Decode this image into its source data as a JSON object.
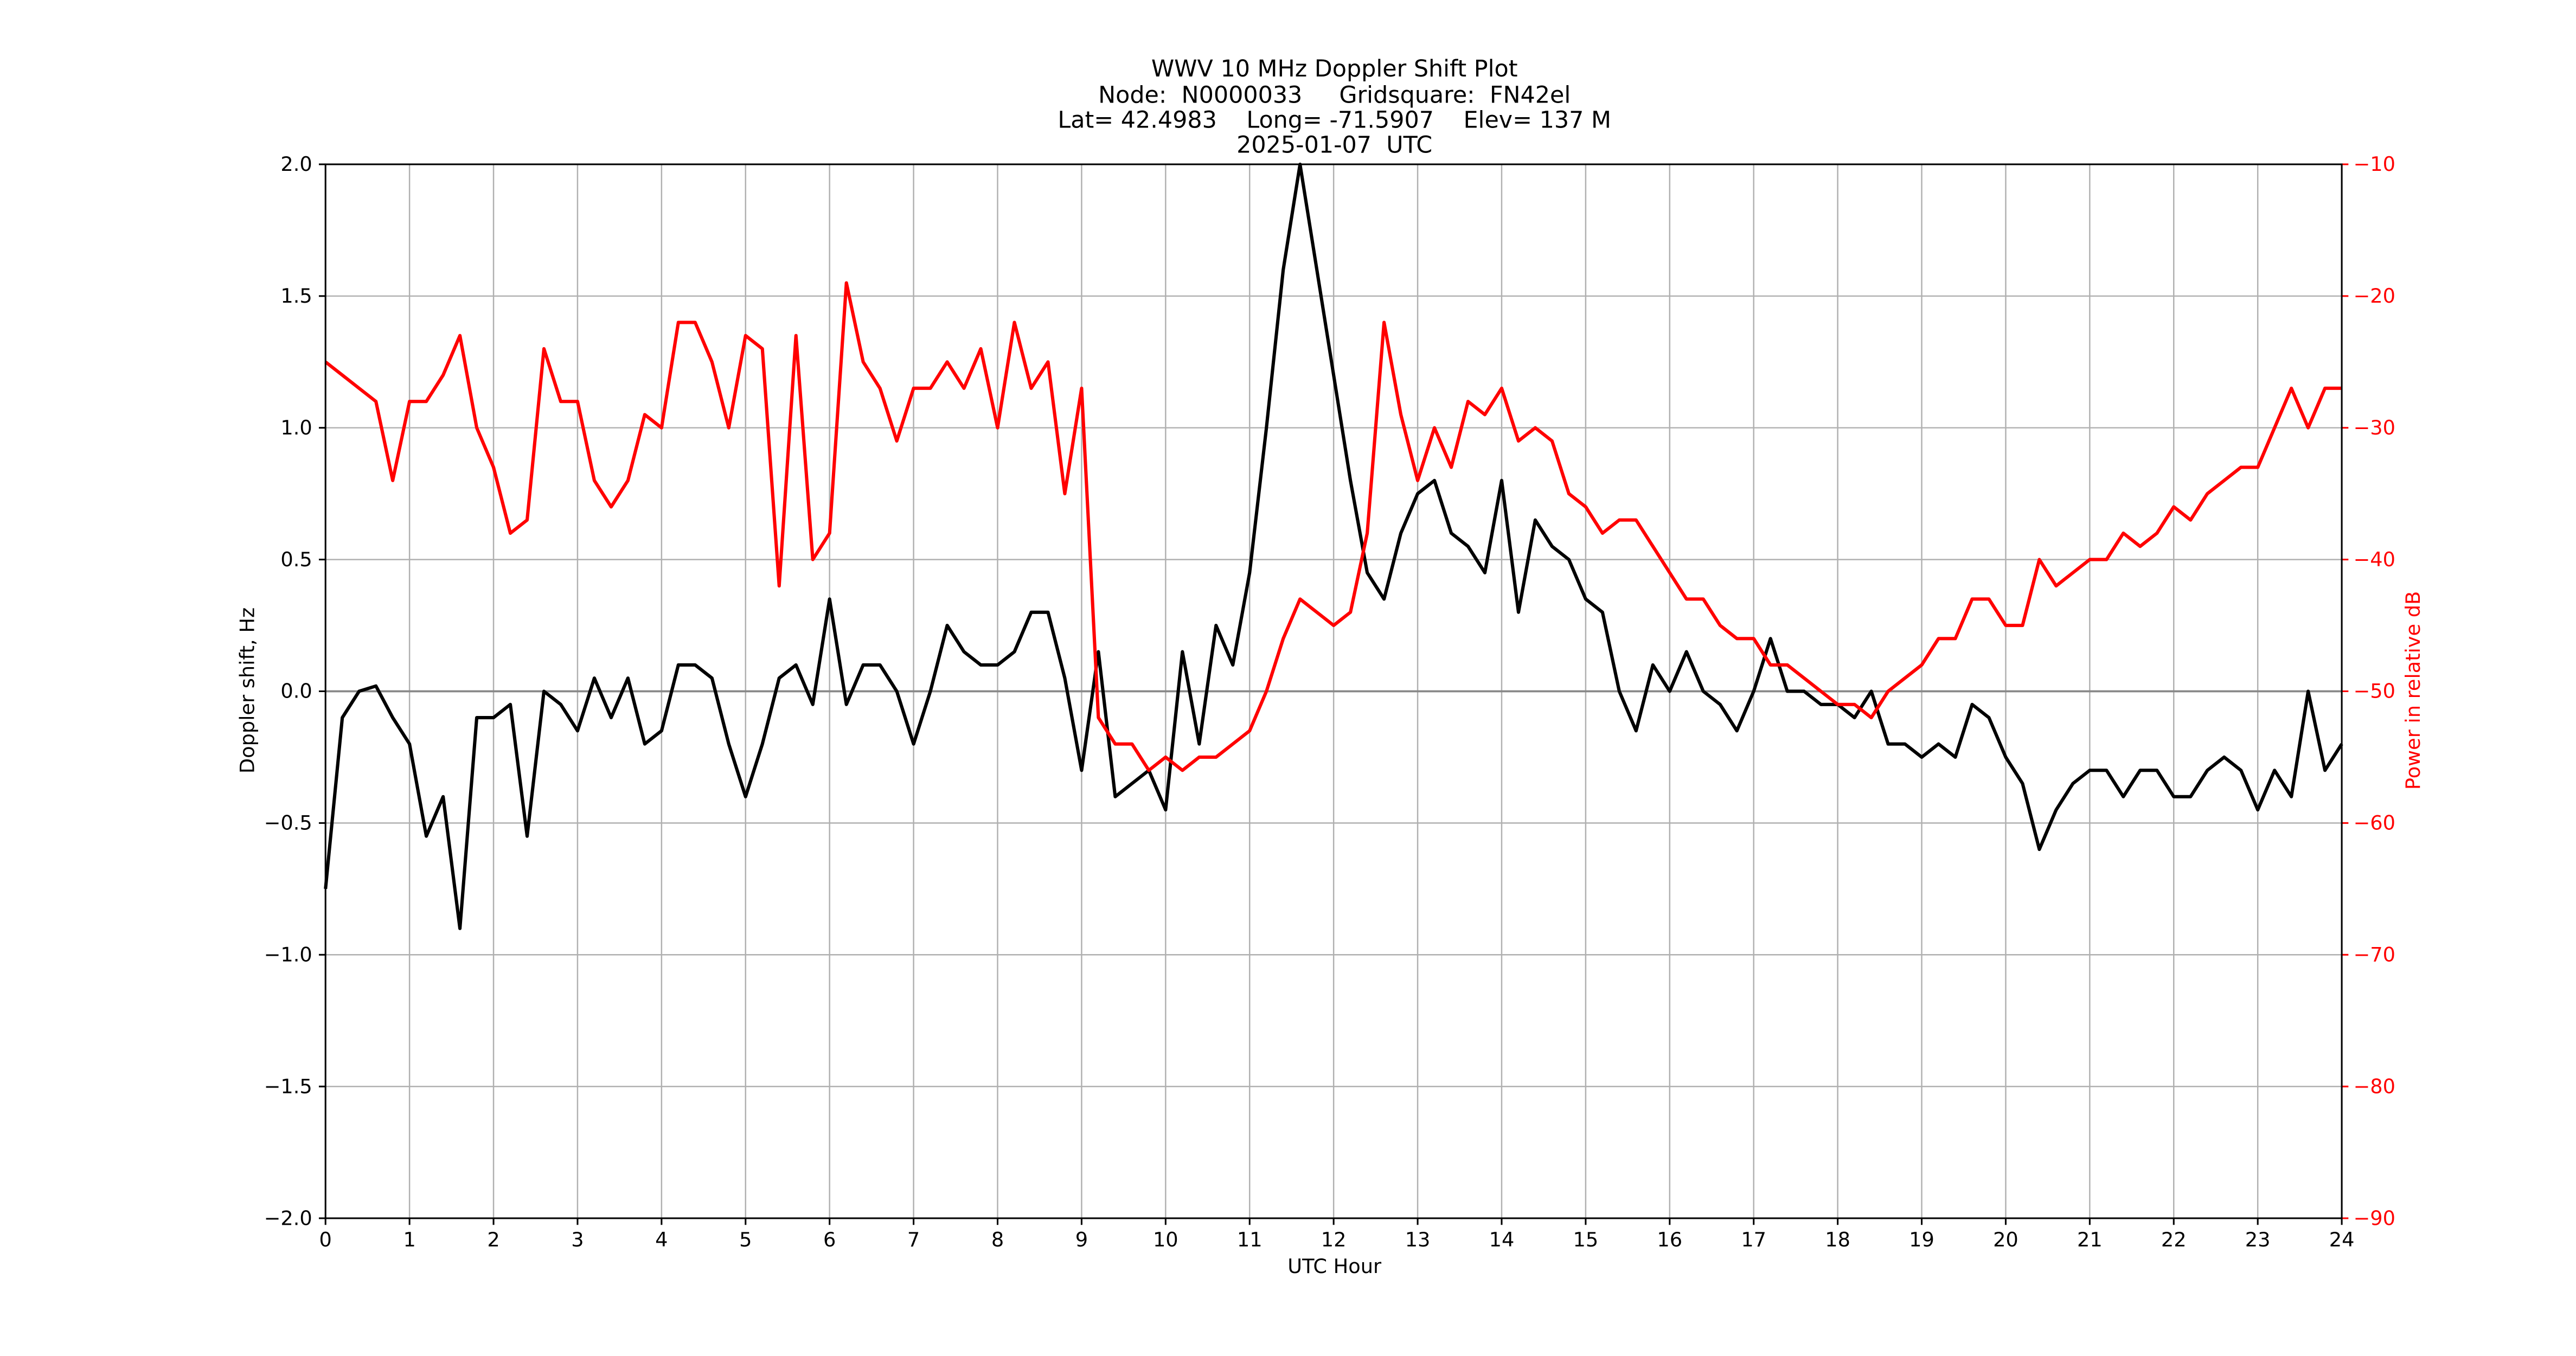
{
  "chart_data": {
    "type": "line",
    "title": [
      "WWV 10 MHz Doppler Shift Plot",
      "Node:  N0000033     Gridsquare:  FN42el",
      "Lat= 42.4983    Long= -71.5907    Elev= 137 M",
      "2025-01-07  UTC"
    ],
    "x_label": "UTC Hour",
    "y_label": "Doppler shift, Hz",
    "y2_label": "Power in relative dB",
    "xlim": [
      0,
      24
    ],
    "ylim": [
      -2,
      2
    ],
    "y2lim": [
      -90,
      -10
    ],
    "grid": true,
    "xticks": [
      0,
      1,
      2,
      3,
      4,
      5,
      6,
      7,
      8,
      9,
      10,
      11,
      12,
      13,
      14,
      15,
      16,
      17,
      18,
      19,
      20,
      21,
      22,
      23,
      24
    ],
    "yticks": [
      {
        "value": -2,
        "label": "−2.0"
      },
      {
        "value": -1.5,
        "label": "−1.5"
      },
      {
        "value": -1,
        "label": "−1.0"
      },
      {
        "value": -0.5,
        "label": "−0.5"
      },
      {
        "value": 0,
        "label": "0.0"
      },
      {
        "value": 0.5,
        "label": "0.5"
      },
      {
        "value": 1,
        "label": "1.0"
      },
      {
        "value": 1.5,
        "label": "1.5"
      },
      {
        "value": 2,
        "label": "2.0"
      }
    ],
    "y2ticks": [
      {
        "value": -90,
        "label": "−90"
      },
      {
        "value": -80,
        "label": "−80"
      },
      {
        "value": -70,
        "label": "−70"
      },
      {
        "value": -60,
        "label": "−60"
      },
      {
        "value": -50,
        "label": "−50"
      },
      {
        "value": -40,
        "label": "−40"
      },
      {
        "value": -30,
        "label": "−30"
      },
      {
        "value": -20,
        "label": "−20"
      },
      {
        "value": -10,
        "label": "−10"
      }
    ],
    "x": [
      0,
      0.2,
      0.4,
      0.6,
      0.8,
      1,
      1.2,
      1.4,
      1.6,
      1.8,
      2,
      2.2,
      2.4,
      2.6,
      2.8,
      3,
      3.2,
      3.4,
      3.6,
      3.8,
      4,
      4.2,
      4.4,
      4.6,
      4.8,
      5,
      5.2,
      5.4,
      5.6,
      5.8,
      6,
      6.2,
      6.4,
      6.6,
      6.8,
      7,
      7.2,
      7.4,
      7.6,
      7.8,
      8,
      8.2,
      8.4,
      8.6,
      8.8,
      9,
      9.2,
      9.4,
      9.6,
      9.8,
      10,
      10.2,
      10.4,
      10.6,
      10.8,
      11,
      11.2,
      11.4,
      11.6,
      11.8,
      12,
      12.2,
      12.4,
      12.6,
      12.8,
      13,
      13.2,
      13.4,
      13.6,
      13.8,
      14,
      14.2,
      14.4,
      14.6,
      14.8,
      15,
      15.2,
      15.4,
      15.6,
      15.8,
      16,
      16.2,
      16.4,
      16.6,
      16.8,
      17,
      17.2,
      17.4,
      17.6,
      17.8,
      18,
      18.2,
      18.4,
      18.6,
      18.8,
      19,
      19.2,
      19.4,
      19.6,
      19.8,
      20,
      20.2,
      20.4,
      20.6,
      20.8,
      21,
      21.2,
      21.4,
      21.6,
      21.8,
      22,
      22.2,
      22.4,
      22.6,
      22.8,
      23,
      23.2,
      23.4,
      23.6,
      23.8,
      24
    ],
    "series": [
      {
        "color": "#000000",
        "values": [
          -0.75,
          -0.1,
          0,
          0.02,
          -0.1,
          -0.2,
          -0.55,
          -0.4,
          -0.9,
          -0.1,
          -0.1,
          -0.05,
          -0.55,
          0,
          -0.05,
          -0.15,
          0.05,
          -0.1,
          0.05,
          -0.2,
          -0.15,
          0.1,
          0.1,
          0.05,
          -0.2,
          -0.4,
          -0.2,
          0.05,
          0.1,
          -0.05,
          0.35,
          -0.05,
          0.1,
          0.1,
          0,
          -0.2,
          0,
          0.25,
          0.15,
          0.1,
          0.1,
          0.15,
          0.3,
          0.3,
          0.05,
          -0.3,
          0.15,
          -0.4,
          -0.35,
          -0.3,
          -0.45,
          0.15,
          -0.2,
          0.25,
          0.1,
          0.45,
          1,
          1.6,
          2,
          1.6,
          1.2,
          0.8,
          0.45,
          0.35,
          0.6,
          0.75,
          0.8,
          0.6,
          0.55,
          0.45,
          0.8,
          0.3,
          0.65,
          0.55,
          0.5,
          0.35,
          0.3,
          0,
          -0.15,
          0.1,
          0,
          0.15,
          0,
          -0.05,
          -0.15,
          0,
          0.2,
          0,
          0,
          -0.05,
          -0.05,
          -0.1,
          0,
          -0.2,
          -0.2,
          -0.25,
          -0.2,
          -0.25,
          -0.05,
          -0.1,
          -0.25,
          -0.35,
          -0.6,
          -0.45,
          -0.35,
          -0.3,
          -0.3,
          -0.4,
          -0.3,
          -0.3,
          -0.4,
          -0.4,
          -0.3,
          -0.25,
          -0.3,
          -0.45,
          -0.3,
          -0.4,
          0,
          -0.3,
          -0.2
        ]
      },
      {
        "color": "#ff0000",
        "axis": "y2",
        "values": [
          -25,
          -26,
          -27,
          -28,
          -34,
          -28,
          -28,
          -26,
          -23,
          -30,
          -33,
          -38,
          -37,
          -24,
          -28,
          -28,
          -34,
          -36,
          -34,
          -29,
          -30,
          -22,
          -22,
          -25,
          -30,
          -23,
          -24,
          -42,
          -23,
          -40,
          -38,
          -19,
          -25,
          -27,
          -31,
          -27,
          -27,
          -25,
          -27,
          -24,
          -30,
          -22,
          -27,
          -25,
          -35,
          -27,
          -52,
          -54,
          -54,
          -56,
          -55,
          -56,
          -55,
          -55,
          -54,
          -53,
          -50,
          -46,
          -43,
          -44,
          -45,
          -44,
          -38,
          -22,
          -29,
          -34,
          -30,
          -33,
          -28,
          -29,
          -27,
          -31,
          -30,
          -31,
          -35,
          -36,
          -38,
          -37,
          -37,
          -39,
          -41,
          -43,
          -43,
          -45,
          -46,
          -46,
          -48,
          -48,
          -49,
          -50,
          -51,
          -51,
          -52,
          -50,
          -49,
          -48,
          -46,
          -46,
          -43,
          -43,
          -45,
          -45,
          -40,
          -42,
          -41,
          -40,
          -40,
          -38,
          -39,
          -38,
          -36,
          -37,
          -35,
          -34,
          -33,
          -33,
          -30,
          -27,
          -30,
          -27,
          -27
        ]
      }
    ]
  }
}
